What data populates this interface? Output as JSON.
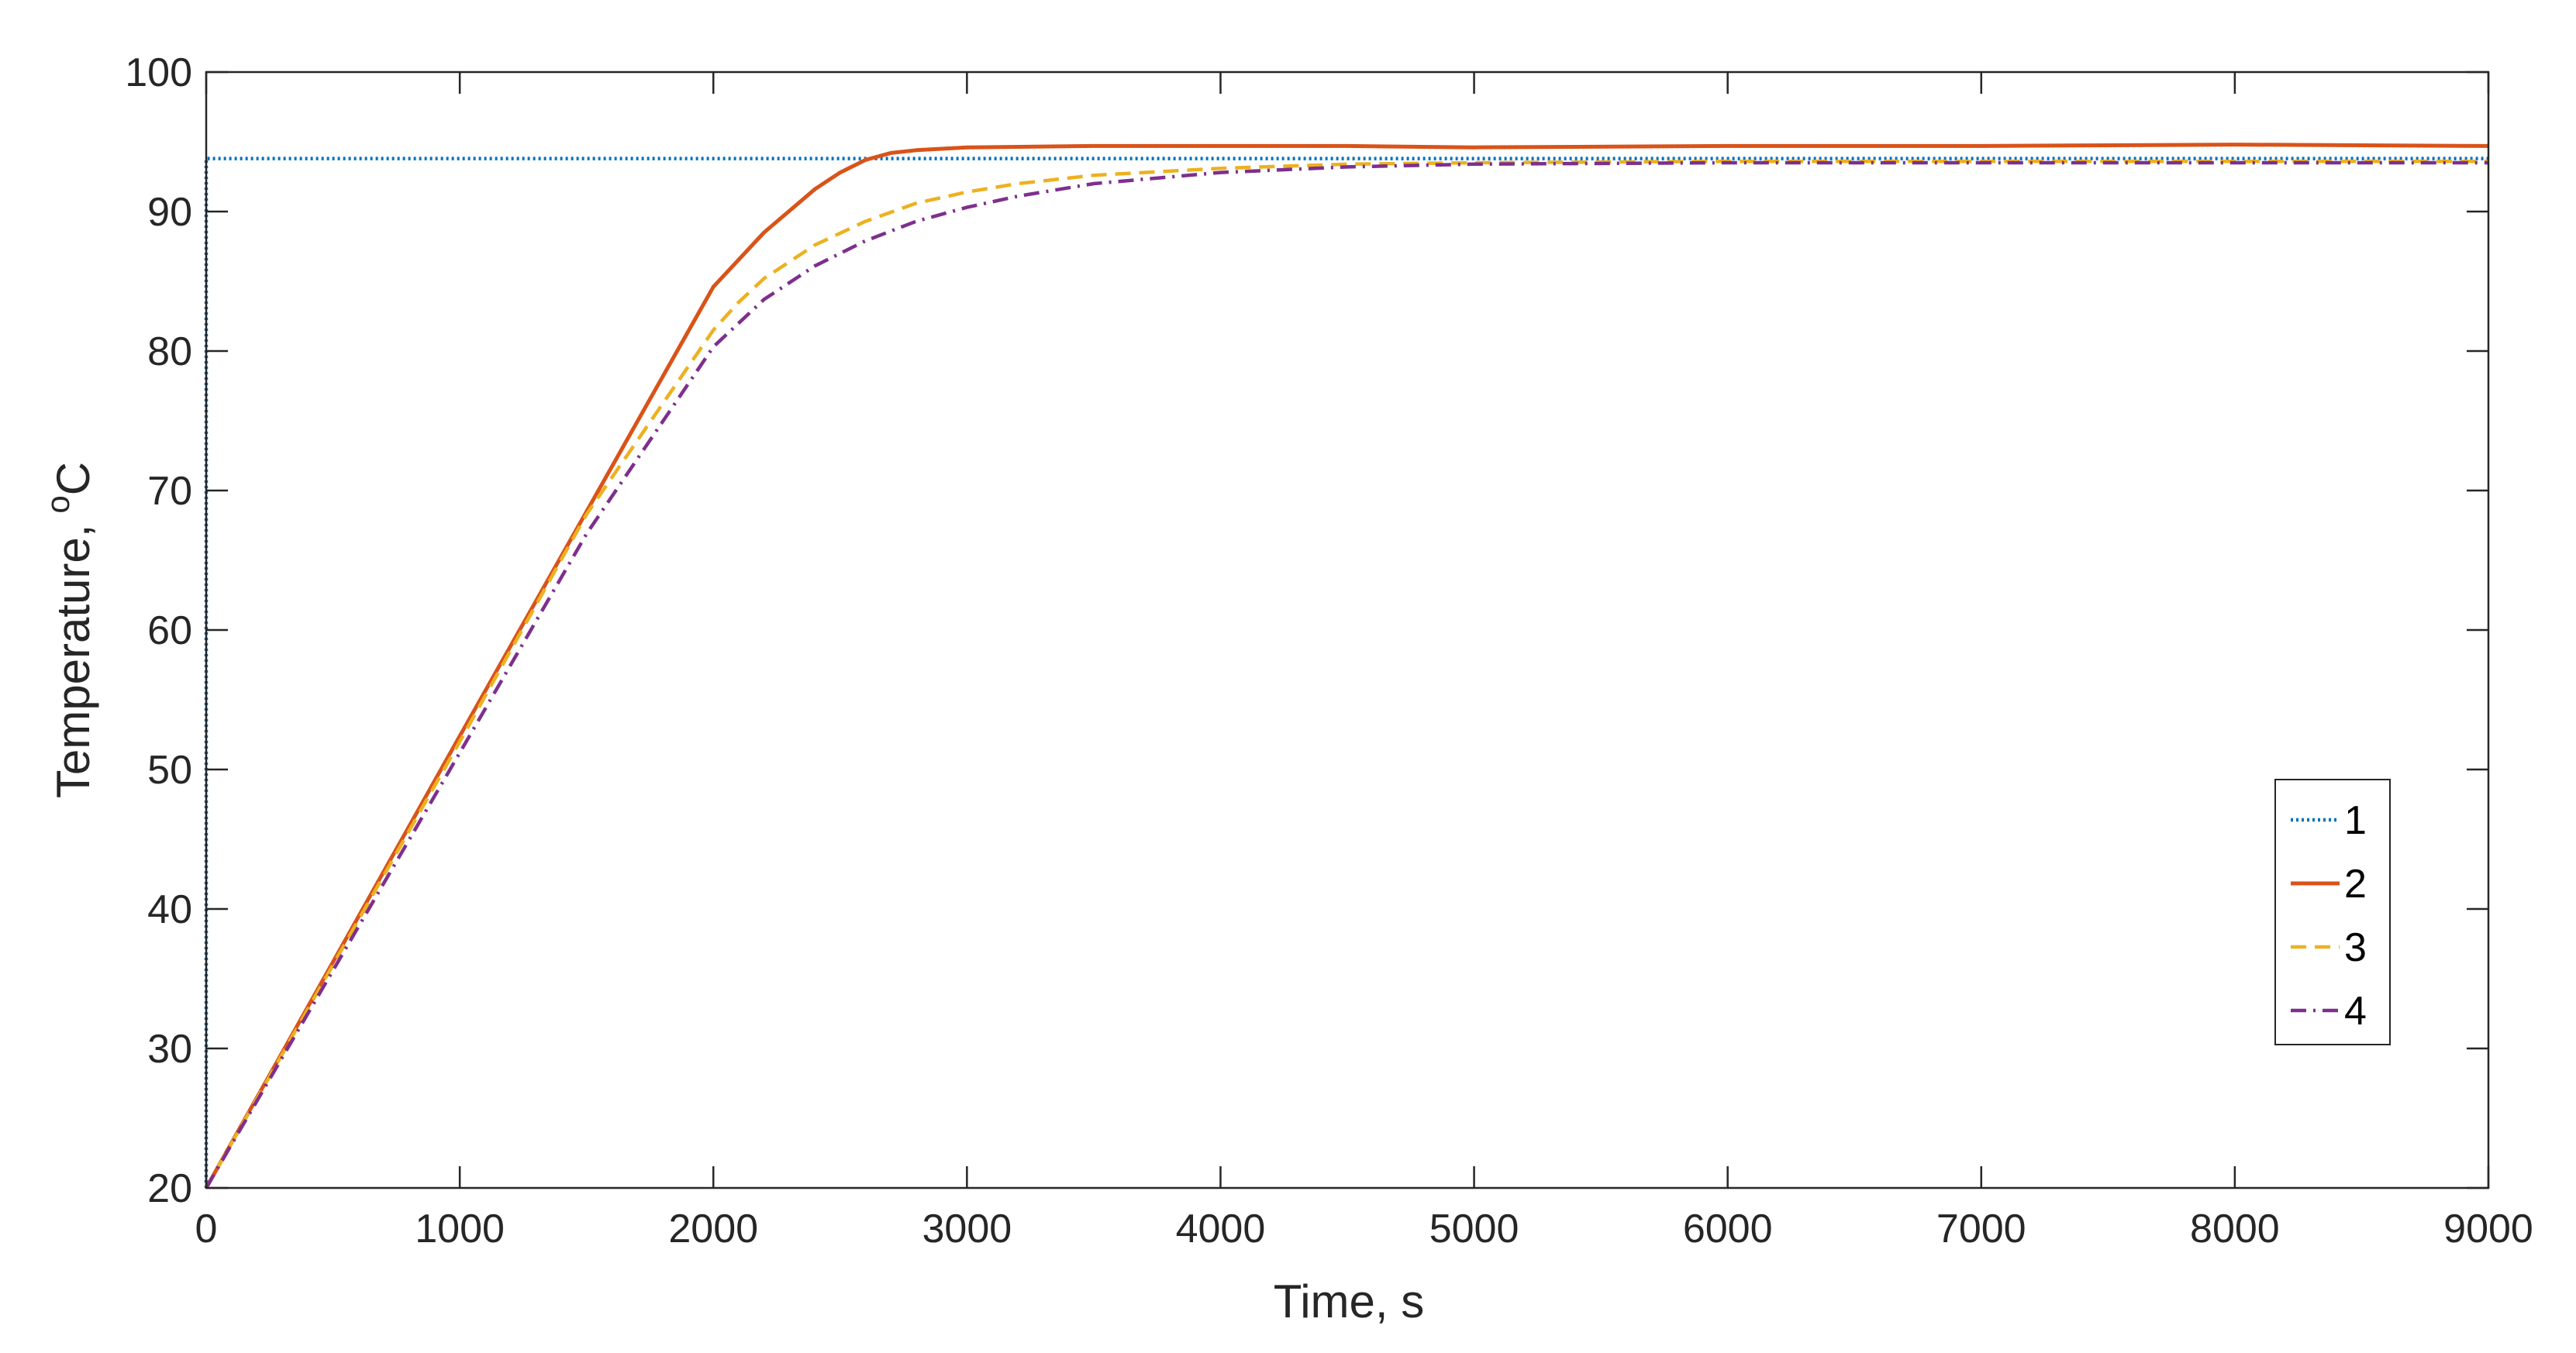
{
  "chart_data": {
    "type": "line",
    "title": "",
    "xlabel": "Time, s",
    "ylabel": "Temperature,",
    "ylabel_superscript": "o",
    "ylabel_unit": "C",
    "xlim": [
      0,
      9000
    ],
    "ylim": [
      20,
      100
    ],
    "xticks": [
      "0",
      "1000",
      "2000",
      "3000",
      "4000",
      "5000",
      "6000",
      "7000",
      "8000",
      "9000"
    ],
    "yticks": [
      "20",
      "30",
      "40",
      "50",
      "60",
      "70",
      "80",
      "90",
      "100"
    ],
    "grid": false,
    "legend_position": "right",
    "series": [
      {
        "name": "1",
        "color": "#0072BD",
        "style": "dotted",
        "x": [
          0,
          0,
          9000
        ],
        "y": [
          20,
          93.8,
          93.8
        ]
      },
      {
        "name": "2",
        "color": "#D95319",
        "style": "solid",
        "x": [
          0,
          500,
          1000,
          1500,
          2000,
          2200,
          2400,
          2500,
          2600,
          2700,
          2800,
          3000,
          3500,
          4000,
          4500,
          5000,
          6000,
          7000,
          8000,
          9000
        ],
        "y": [
          20,
          36.2,
          52.4,
          68.5,
          84.6,
          88.5,
          91.6,
          92.8,
          93.7,
          94.2,
          94.4,
          94.6,
          94.7,
          94.7,
          94.7,
          94.6,
          94.7,
          94.7,
          94.8,
          94.7
        ]
      },
      {
        "name": "3",
        "color": "#EDB120",
        "style": "dashed",
        "x": [
          0,
          500,
          1000,
          1500,
          2000,
          2100,
          2200,
          2400,
          2600,
          2800,
          3000,
          3200,
          3500,
          4000,
          4500,
          5000,
          6000,
          7000,
          8000,
          9000
        ],
        "y": [
          20,
          36,
          52,
          68.3,
          81.5,
          83.5,
          85.2,
          87.6,
          89.3,
          90.6,
          91.4,
          92,
          92.6,
          93.1,
          93.4,
          93.5,
          93.6,
          93.6,
          93.6,
          93.6
        ]
      },
      {
        "name": "4",
        "color": "#7E2F8E",
        "style": "dashdot",
        "x": [
          0,
          500,
          1000,
          1500,
          2000,
          2200,
          2400,
          2600,
          2800,
          3000,
          3200,
          3500,
          4000,
          4500,
          5000,
          6000,
          7000,
          8000,
          9000
        ],
        "y": [
          20,
          35.6,
          51.2,
          66.9,
          80.3,
          83.7,
          86.1,
          87.9,
          89.3,
          90.3,
          91.1,
          92,
          92.8,
          93.2,
          93.4,
          93.5,
          93.5,
          93.5,
          93.5
        ]
      }
    ]
  }
}
